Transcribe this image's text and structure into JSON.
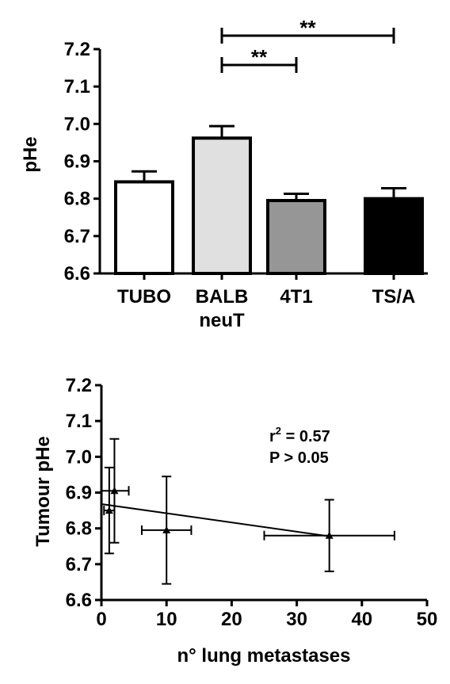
{
  "chart_data": [
    {
      "type": "bar",
      "ylabel": "pHe",
      "ylim": [
        6.6,
        7.2
      ],
      "yticks": [
        "6.6",
        "6.7",
        "6.8",
        "6.9",
        "7.0",
        "7.1",
        "7.2"
      ],
      "categories": [
        "TUBO",
        "BALB",
        "4T1",
        "TS/A"
      ],
      "category_sublabels": [
        "",
        "neuT",
        "",
        ""
      ],
      "values": [
        6.845,
        6.962,
        6.795,
        6.8
      ],
      "errors": [
        0.028,
        0.032,
        0.018,
        0.028
      ],
      "bar_colors": [
        "#ffffff",
        "#e0e0e0",
        "#969696",
        "#000000"
      ],
      "significance": [
        {
          "from": "BALB",
          "to": "TS/A",
          "label": "**"
        },
        {
          "from": "BALB",
          "to": "4T1",
          "label": "**"
        }
      ],
      "grid": false
    },
    {
      "type": "scatter",
      "xlabel": "n° lung metastases",
      "ylabel": "Tumour pHe",
      "xlim": [
        0,
        50
      ],
      "ylim": [
        6.6,
        7.2
      ],
      "xticks": [
        "0",
        "10",
        "20",
        "30",
        "40",
        "50"
      ],
      "yticks": [
        "6.6",
        "6.7",
        "6.8",
        "6.9",
        "7.0",
        "7.1",
        "7.2"
      ],
      "points": [
        {
          "x": 1.2,
          "y": 6.85,
          "xerr": 0.8,
          "yerr": 0.12
        },
        {
          "x": 2.0,
          "y": 6.905,
          "xerr": 2.2,
          "yerr": 0.145
        },
        {
          "x": 10.0,
          "y": 6.795,
          "xerr": 3.8,
          "yerr": 0.15
        },
        {
          "x": 35.0,
          "y": 6.78,
          "xerr": 10.0,
          "yerr": 0.1
        }
      ],
      "fit_line": {
        "x": [
          0,
          35
        ],
        "y": [
          6.868,
          6.778
        ]
      },
      "r2_label": "r",
      "r2_sup": "2",
      "r2_value": " = 0.57",
      "p_text": "P > 0.05",
      "grid": false
    }
  ]
}
